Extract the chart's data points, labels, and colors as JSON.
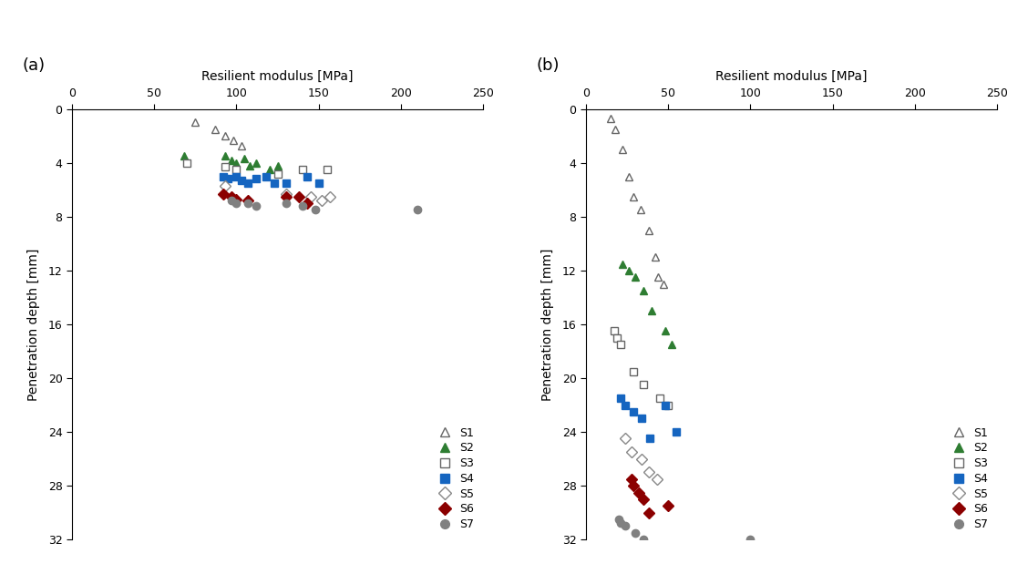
{
  "panel_a": {
    "label": "(a)",
    "xlabel": "Resilient modulus [MPa]",
    "ylabel": "Penetration depth [mm]",
    "xlim": [
      0,
      250
    ],
    "ylim": [
      32,
      0
    ],
    "xticks": [
      0,
      50,
      100,
      150,
      200,
      250
    ],
    "yticks": [
      0,
      4,
      8,
      12,
      16,
      20,
      24,
      28,
      32
    ],
    "series": {
      "S1": {
        "color": "white",
        "edgecolor": "#666666",
        "marker": "^",
        "x": [
          75,
          87,
          93,
          98,
          103
        ],
        "y": [
          1.0,
          1.5,
          2.0,
          2.3,
          2.7
        ]
      },
      "S2": {
        "color": "#2e7d32",
        "edgecolor": "#2e7d32",
        "marker": "^",
        "x": [
          68,
          93,
          97,
          100,
          105,
          108,
          112,
          120,
          125
        ],
        "y": [
          3.5,
          3.5,
          3.8,
          4.0,
          3.7,
          4.2,
          4.0,
          4.5,
          4.2
        ]
      },
      "S3": {
        "color": "white",
        "edgecolor": "#666666",
        "marker": "s",
        "x": [
          70,
          93,
          100,
          125,
          140,
          155
        ],
        "y": [
          4.0,
          4.3,
          4.5,
          4.8,
          4.5,
          4.5
        ]
      },
      "S4": {
        "color": "#1565c0",
        "edgecolor": "#1565c0",
        "marker": "s",
        "x": [
          92,
          95,
          100,
          103,
          107,
          112,
          118,
          123,
          130,
          143,
          150
        ],
        "y": [
          5.0,
          5.2,
          5.0,
          5.3,
          5.5,
          5.2,
          5.0,
          5.5,
          5.5,
          5.0,
          5.5
        ]
      },
      "S5": {
        "color": "white",
        "edgecolor": "#888888",
        "marker": "D",
        "x": [
          93,
          130,
          145,
          152,
          157
        ],
        "y": [
          5.7,
          6.3,
          6.5,
          6.8,
          6.5
        ]
      },
      "S6": {
        "color": "#8b0000",
        "edgecolor": "#8b0000",
        "marker": "D",
        "x": [
          92,
          97,
          100,
          107,
          130,
          138,
          143
        ],
        "y": [
          6.3,
          6.5,
          6.7,
          6.8,
          6.5,
          6.5,
          7.0
        ]
      },
      "S7": {
        "color": "#808080",
        "edgecolor": "#808080",
        "marker": "o",
        "x": [
          97,
          100,
          107,
          112,
          130,
          140,
          148,
          210
        ],
        "y": [
          6.8,
          7.0,
          7.0,
          7.2,
          7.0,
          7.2,
          7.5,
          7.5
        ]
      }
    }
  },
  "panel_b": {
    "label": "(b)",
    "xlabel": "Resilient modulus [MPa]",
    "ylabel": "Penetration depth [mm]",
    "xlim": [
      0,
      250
    ],
    "ylim": [
      32,
      0
    ],
    "xticks": [
      0,
      50,
      100,
      150,
      200,
      250
    ],
    "yticks": [
      0,
      4,
      8,
      12,
      16,
      20,
      24,
      28,
      32
    ],
    "series": {
      "S1": {
        "color": "white",
        "edgecolor": "#666666",
        "marker": "^",
        "x": [
          15,
          18,
          22,
          26,
          29,
          33,
          38,
          42,
          44,
          47
        ],
        "y": [
          0.7,
          1.5,
          3.0,
          5.0,
          6.5,
          7.5,
          9.0,
          11.0,
          12.5,
          13.0
        ]
      },
      "S2": {
        "color": "#2e7d32",
        "edgecolor": "#2e7d32",
        "marker": "^",
        "x": [
          22,
          26,
          30,
          35,
          40,
          48,
          52
        ],
        "y": [
          11.5,
          12.0,
          12.5,
          13.5,
          15.0,
          16.5,
          17.5
        ]
      },
      "S3": {
        "color": "white",
        "edgecolor": "#666666",
        "marker": "s",
        "x": [
          17,
          19,
          21,
          29,
          35,
          45,
          50
        ],
        "y": [
          16.5,
          17.0,
          17.5,
          19.5,
          20.5,
          21.5,
          22.0
        ]
      },
      "S4": {
        "color": "#1565c0",
        "edgecolor": "#1565c0",
        "marker": "s",
        "x": [
          21,
          24,
          29,
          34,
          39,
          48,
          55
        ],
        "y": [
          21.5,
          22.0,
          22.5,
          23.0,
          24.5,
          22.0,
          24.0
        ]
      },
      "S5": {
        "color": "white",
        "edgecolor": "#888888",
        "marker": "D",
        "x": [
          24,
          28,
          34,
          38,
          43
        ],
        "y": [
          24.5,
          25.5,
          26.0,
          27.0,
          27.5
        ]
      },
      "S6": {
        "color": "#8b0000",
        "edgecolor": "#8b0000",
        "marker": "D",
        "x": [
          28,
          29,
          32,
          35,
          38,
          50
        ],
        "y": [
          27.5,
          28.0,
          28.5,
          29.0,
          30.0,
          29.5
        ]
      },
      "S7": {
        "color": "#808080",
        "edgecolor": "#808080",
        "marker": "o",
        "x": [
          20,
          21,
          24,
          30,
          35,
          100
        ],
        "y": [
          30.5,
          30.8,
          31.0,
          31.5,
          32.0,
          32.0
        ]
      }
    }
  },
  "series_order": [
    "S1",
    "S2",
    "S3",
    "S4",
    "S5",
    "S6",
    "S7"
  ],
  "marker_size": 6,
  "legend_marker_size": 7
}
